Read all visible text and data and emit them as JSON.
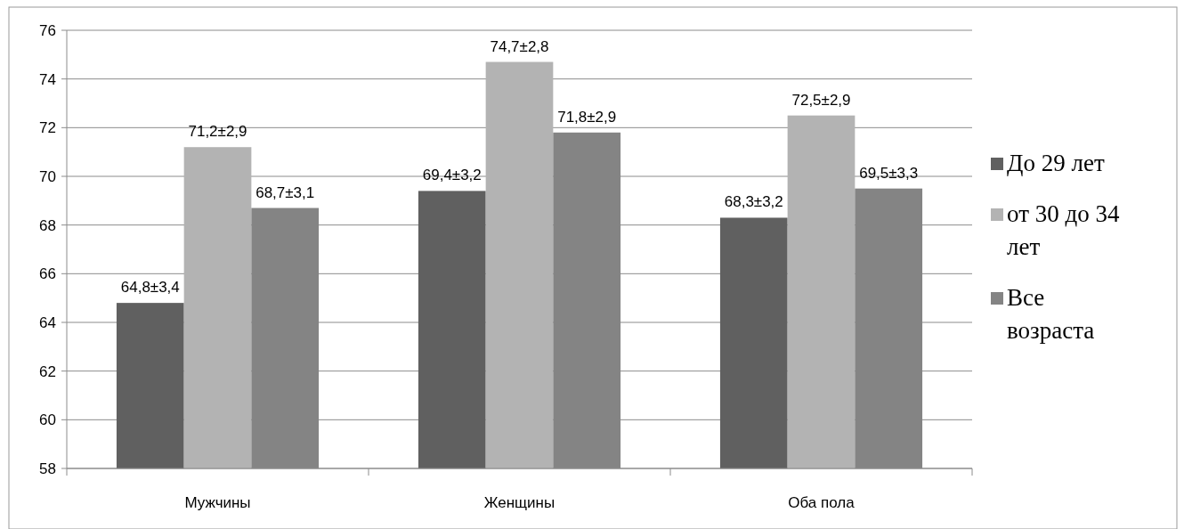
{
  "chart_data": {
    "type": "bar",
    "categories": [
      "Мужчины",
      "Женщины",
      "Оба пола"
    ],
    "series": [
      {
        "name": "До 29 лет",
        "color": "#606060",
        "values": [
          64.8,
          69.4,
          68.3
        ],
        "value_labels": [
          "64,8±3,4",
          "69,4±3,2",
          "68,3±3,2"
        ]
      },
      {
        "name": "от 30 до 34 лет",
        "color": "#b3b3b3",
        "values": [
          71.2,
          74.7,
          72.5
        ],
        "value_labels": [
          "71,2±2,9",
          "74,7±2,8",
          "72,5±2,9"
        ]
      },
      {
        "name": "Все возраста",
        "color": "#848484",
        "values": [
          68.7,
          71.8,
          69.5
        ],
        "value_labels": [
          "68,7±3,1",
          "71,8±2,9",
          "69,5±3,3"
        ]
      }
    ],
    "ylim": [
      58,
      76
    ],
    "yticks": [
      58,
      60,
      62,
      64,
      66,
      68,
      70,
      72,
      74,
      76
    ],
    "grid": "y",
    "legend": "right"
  }
}
